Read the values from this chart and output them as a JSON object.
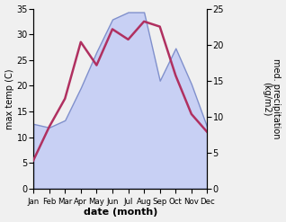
{
  "months": [
    "Jan",
    "Feb",
    "Mar",
    "Apr",
    "May",
    "Jun",
    "Jul",
    "Aug",
    "Sep",
    "Oct",
    "Nov",
    "Dec"
  ],
  "temp": [
    5.5,
    12.0,
    17.5,
    28.5,
    24.0,
    31.0,
    29.0,
    32.5,
    31.5,
    22.0,
    14.5,
    11.0
  ],
  "precip": [
    9.0,
    8.5,
    9.5,
    14.0,
    19.0,
    23.5,
    24.5,
    24.5,
    15.0,
    19.5,
    14.5,
    8.5
  ],
  "temp_color": "#b03060",
  "precip_fill_color": "#c8d0f4",
  "precip_edge_color": "#8090cc",
  "ylim_left": [
    0,
    35
  ],
  "ylim_right": [
    0,
    25
  ],
  "yticks_left": [
    0,
    5,
    10,
    15,
    20,
    25,
    30,
    35
  ],
  "yticks_right": [
    0,
    5,
    10,
    15,
    20,
    25
  ],
  "xlabel": "date (month)",
  "ylabel_left": "max temp (C)",
  "ylabel_right": "med. precipitation\n(kg/m2)",
  "bg_color": "#f0f0f0",
  "temp_linewidth": 1.8,
  "precip_linewidth": 1.0
}
